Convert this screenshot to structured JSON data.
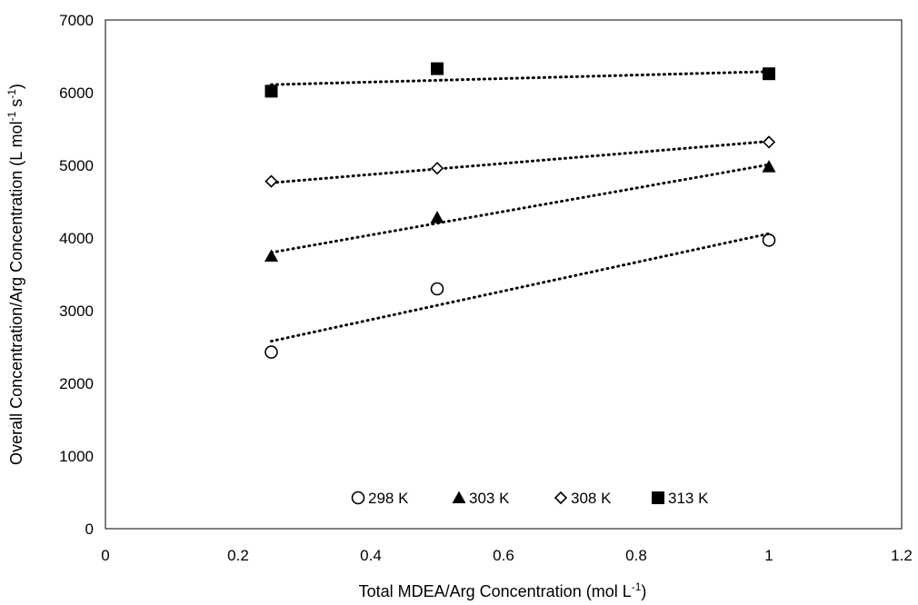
{
  "chart_data": {
    "type": "scatter",
    "title": "",
    "xlabel": {
      "text": "Total  MDEA/Arg Concentration (mol L",
      "sup": "-1",
      "end": ")"
    },
    "ylabel": {
      "part1": "Overall Concentration/Arg Concentration (L mol",
      "sup1": "-1",
      "part2": " s",
      "sup2": "-1",
      "end": ")"
    },
    "xlim": [
      0,
      1.2
    ],
    "ylim": [
      0,
      7000
    ],
    "xticks": [
      0,
      0.2,
      0.4,
      0.6,
      0.8,
      1,
      1.2
    ],
    "xtick_labels": [
      "0",
      "0.2",
      "0.4",
      "0.6",
      "0.8",
      "1",
      "1.2"
    ],
    "yticks": [
      0,
      1000,
      2000,
      3000,
      4000,
      5000,
      6000,
      7000
    ],
    "ytick_labels": [
      "0",
      "1000",
      "2000",
      "3000",
      "4000",
      "5000",
      "6000",
      "7000"
    ],
    "grid": false,
    "legend_position": "bottom-inside",
    "series": [
      {
        "name": "298 K",
        "marker": "circle-open",
        "points": [
          [
            0.25,
            2430
          ],
          [
            0.5,
            3300
          ],
          [
            1.0,
            3970
          ]
        ],
        "trendline": [
          [
            0.25,
            2580
          ],
          [
            1.0,
            4060
          ]
        ]
      },
      {
        "name": "303 K",
        "marker": "triangle-filled",
        "points": [
          [
            0.25,
            3750
          ],
          [
            0.5,
            4280
          ],
          [
            1.0,
            4980
          ]
        ],
        "trendline": [
          [
            0.25,
            3800
          ],
          [
            1.0,
            5010
          ]
        ]
      },
      {
        "name": "308 K",
        "marker": "diamond-open",
        "points": [
          [
            0.25,
            4780
          ],
          [
            0.5,
            4960
          ],
          [
            1.0,
            5320
          ]
        ],
        "trendline": [
          [
            0.25,
            4760
          ],
          [
            1.0,
            5330
          ]
        ]
      },
      {
        "name": "313 K",
        "marker": "square-filled",
        "points": [
          [
            0.25,
            6020
          ],
          [
            0.5,
            6330
          ],
          [
            1.0,
            6260
          ]
        ],
        "trendline": [
          [
            0.25,
            6110
          ],
          [
            1.0,
            6290
          ]
        ]
      }
    ]
  }
}
